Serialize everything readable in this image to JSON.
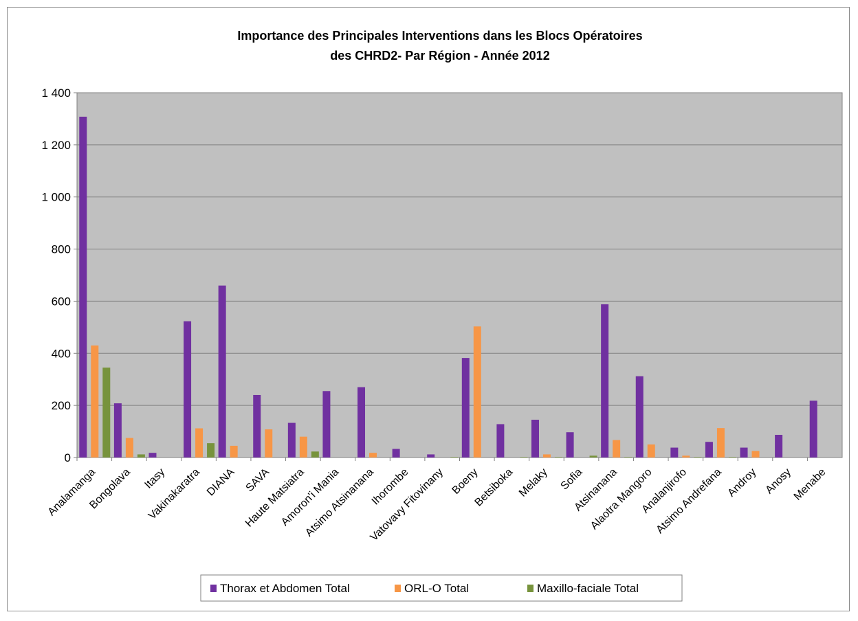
{
  "chart_data": {
    "type": "bar",
    "title": "Importance des Principales Interventions dans les Blocs Opératoires",
    "subtitle": "des CHRD2- Par Région - Année 2012",
    "xlabel": "",
    "ylabel": "",
    "ylim": [
      0,
      1400
    ],
    "yticks": [
      0,
      200,
      400,
      600,
      800,
      1000,
      1200,
      1400
    ],
    "ytick_labels": [
      "0",
      "200",
      "400",
      "600",
      "800",
      "1 000",
      "1 200",
      "1 400"
    ],
    "grid": true,
    "legend_position": "bottom",
    "categories": [
      "Analamanga",
      "Bongolava",
      "Itasy",
      "Vakinakaratra",
      "DIANA",
      "SAVA",
      "Haute Matsiatra",
      "Amoron'i Mania",
      "Atsimo Atsinanana",
      "Ihorombe",
      "Vatovavy Fitovinany",
      "Boeny",
      "Betsiboka",
      "Melaky",
      "Sofia",
      "Atsinanana",
      "Alaotra Mangoro",
      "Analanjirofo",
      "Atsimo Andrefana",
      "Androy",
      "Anosy",
      "Menabe"
    ],
    "series": [
      {
        "name": "Thorax et Abdomen Total",
        "color": "#7030a0",
        "values": [
          1308,
          208,
          18,
          523,
          660,
          240,
          133,
          255,
          270,
          33,
          12,
          382,
          128,
          145,
          97,
          588,
          312,
          38,
          60,
          38,
          87,
          218
        ]
      },
      {
        "name": "ORL-O Total",
        "color": "#f79646",
        "values": [
          430,
          75,
          0,
          112,
          45,
          108,
          80,
          0,
          18,
          0,
          0,
          503,
          0,
          12,
          0,
          67,
          50,
          7,
          113,
          25,
          0,
          0
        ]
      },
      {
        "name": "Maxillo-faciale Total",
        "color": "#77933c",
        "values": [
          345,
          12,
          0,
          55,
          0,
          0,
          23,
          0,
          0,
          0,
          2,
          0,
          2,
          2,
          7,
          2,
          0,
          2,
          2,
          0,
          0,
          0
        ]
      }
    ]
  }
}
